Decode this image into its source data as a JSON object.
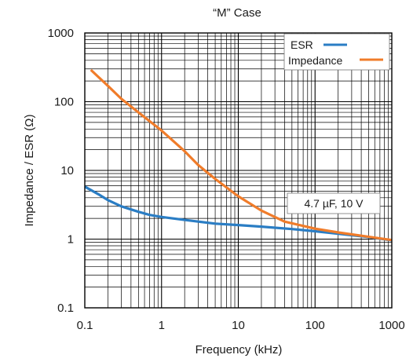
{
  "chart_data": {
    "type": "line",
    "title": "“M” Case",
    "xlabel": "Frequency (kHz)",
    "ylabel": "Impedance / ESR (Ω)",
    "xscale": "log",
    "yscale": "log",
    "xlim": [
      0.1,
      1000
    ],
    "ylim": [
      0.1,
      1000
    ],
    "x_tick_labels": [
      "0.1",
      "1",
      "10",
      "100",
      "1000"
    ],
    "x_tick_values": [
      0.1,
      1,
      10,
      100,
      1000
    ],
    "y_tick_labels": [
      "0.1",
      "1",
      "10",
      "100",
      "1000"
    ],
    "y_tick_values": [
      0.1,
      1,
      10,
      100,
      1000
    ],
    "grid": true,
    "legend_position": "top-right",
    "annotation": "4.7 µF, 10 V",
    "series": [
      {
        "name": "ESR",
        "color": "#2a7dc4",
        "points": [
          [
            0.1,
            5.8
          ],
          [
            0.15,
            4.5
          ],
          [
            0.2,
            3.7
          ],
          [
            0.3,
            3.0
          ],
          [
            0.5,
            2.5
          ],
          [
            0.7,
            2.25
          ],
          [
            1,
            2.1
          ],
          [
            2,
            1.9
          ],
          [
            3,
            1.8
          ],
          [
            5,
            1.68
          ],
          [
            10,
            1.6
          ],
          [
            20,
            1.52
          ],
          [
            50,
            1.4
          ],
          [
            100,
            1.3
          ],
          [
            200,
            1.2
          ],
          [
            500,
            1.07
          ],
          [
            1000,
            0.96
          ]
        ]
      },
      {
        "name": "Impedance",
        "color": "#f07c2a",
        "points": [
          [
            0.12,
            290
          ],
          [
            0.2,
            170
          ],
          [
            0.3,
            110
          ],
          [
            0.5,
            70
          ],
          [
            1,
            38
          ],
          [
            2,
            19
          ],
          [
            3,
            12
          ],
          [
            5,
            7.5
          ],
          [
            10,
            4.2
          ],
          [
            20,
            2.6
          ],
          [
            40,
            1.8
          ],
          [
            100,
            1.42
          ],
          [
            200,
            1.25
          ],
          [
            500,
            1.08
          ],
          [
            1000,
            0.97
          ]
        ]
      }
    ]
  }
}
